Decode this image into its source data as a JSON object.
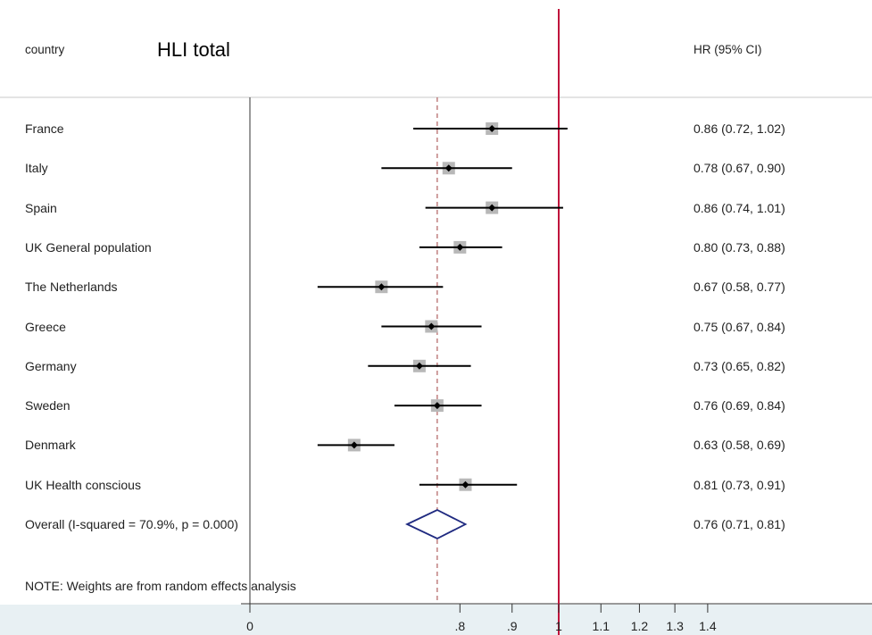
{
  "header": {
    "col_left": "country",
    "title": "HLI total",
    "col_right": "HR (95% CI)"
  },
  "chart_data": {
    "type": "forest",
    "studies": [
      {
        "label": "France",
        "hr": 0.86,
        "lo": 0.72,
        "hi": 1.02,
        "ci_text": "0.86 (0.72, 1.02)"
      },
      {
        "label": "Italy",
        "hr": 0.78,
        "lo": 0.67,
        "hi": 0.9,
        "ci_text": "0.78 (0.67, 0.90)"
      },
      {
        "label": "Spain",
        "hr": 0.86,
        "lo": 0.74,
        "hi": 1.01,
        "ci_text": "0.86 (0.74, 1.01)"
      },
      {
        "label": "UK General population",
        "hr": 0.8,
        "lo": 0.73,
        "hi": 0.88,
        "ci_text": "0.80 (0.73, 0.88)"
      },
      {
        "label": "The Netherlands",
        "hr": 0.67,
        "lo": 0.58,
        "hi": 0.77,
        "ci_text": "0.67 (0.58, 0.77)"
      },
      {
        "label": "Greece",
        "hr": 0.75,
        "lo": 0.67,
        "hi": 0.84,
        "ci_text": "0.75 (0.67, 0.84)"
      },
      {
        "label": "Germany",
        "hr": 0.73,
        "lo": 0.65,
        "hi": 0.82,
        "ci_text": "0.73 (0.65, 0.82)"
      },
      {
        "label": "Sweden",
        "hr": 0.76,
        "lo": 0.69,
        "hi": 0.84,
        "ci_text": "0.76 (0.69, 0.84)"
      },
      {
        "label": "Denmark",
        "hr": 0.63,
        "lo": 0.58,
        "hi": 0.69,
        "ci_text": "0.63 (0.58, 0.69)"
      },
      {
        "label": "UK Health conscious",
        "hr": 0.81,
        "lo": 0.73,
        "hi": 0.91,
        "ci_text": "0.81 (0.73, 0.91)"
      }
    ],
    "overall": {
      "label": "Overall  (I-squared = 70.9%, p = 0.000)",
      "hr": 0.76,
      "lo": 0.71,
      "hi": 0.81,
      "ci_text": "0.76 (0.71, 0.81)"
    },
    "note": "NOTE: Weights are from random effects analysis",
    "x_scale": "log",
    "ticks": [
      {
        "value": 0.8,
        "label": ".8"
      },
      {
        "value": 0.9,
        "label": ".9"
      },
      {
        "value": 1.0,
        "label": "1"
      },
      {
        "value": 1.1,
        "label": "1.1"
      },
      {
        "value": 1.2,
        "label": "1.2"
      },
      {
        "value": 1.3,
        "label": "1.3"
      },
      {
        "value": 1.4,
        "label": "1.4"
      }
    ],
    "zero_label": "0",
    "null_line": 1.0,
    "colors": {
      "null_line": "#c0143c",
      "overall_line": "#b06060",
      "diamond": "#1f2a80",
      "weight_box": "#b8b8b8",
      "ci_line": "#000000",
      "axis_band": "#e8f0f3"
    }
  }
}
